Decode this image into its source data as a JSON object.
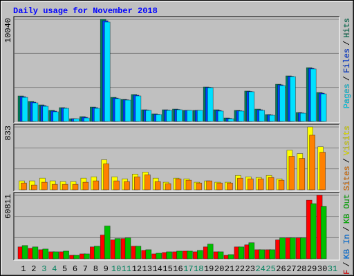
{
  "title": "Daily usage for November 2018",
  "categories": [
    "1",
    "2",
    "3",
    "4",
    "5",
    "6",
    "7",
    "8",
    "9",
    "10",
    "11",
    "12",
    "13",
    "14",
    "15",
    "16",
    "17",
    "18",
    "19",
    "20",
    "21",
    "22",
    "23",
    "24",
    "25",
    "26",
    "27",
    "28",
    "29",
    "30",
    "31"
  ],
  "category_colors": [
    "#000000",
    "#000000",
    "#00805c",
    "#00805c",
    "#000000",
    "#000000",
    "#000000",
    "#000000",
    "#000000",
    "#00805c",
    "#00805c",
    "#000000",
    "#000000",
    "#000000",
    "#000000",
    "#000000",
    "#00805c",
    "#00805c",
    "#000000",
    "#000000",
    "#000000",
    "#000000",
    "#000000",
    "#00805c",
    "#00805c",
    "#000000",
    "#000000",
    "#000000",
    "#000000",
    "#000000",
    "#00805c"
  ],
  "legend_separator": "/",
  "chart_data": [
    {
      "type": "bar",
      "ylim": [
        0,
        10040
      ],
      "yticks": [
        10040
      ],
      "grid": true,
      "grid_divisions": 3,
      "legend_reversed": true,
      "series": [
        {
          "name": "Hits",
          "color": "#00805c",
          "values": [
            2510,
            1970,
            1630,
            1090,
            1360,
            270,
            475,
            1420,
            10040,
            2370,
            2170,
            2650,
            1150,
            750,
            1150,
            1220,
            1090,
            1090,
            3390,
            1150,
            340,
            1090,
            2990,
            1220,
            680,
            3660,
            4480,
            880,
            5290,
            2850,
            0
          ]
        },
        {
          "name": "Files",
          "color": "#0040ff",
          "values": [
            2440,
            1900,
            1560,
            1020,
            1320,
            270,
            410,
            1360,
            9900,
            2300,
            2130,
            2580,
            1120,
            710,
            1120,
            1180,
            1090,
            1090,
            3350,
            1080,
            300,
            1050,
            2950,
            1150,
            640,
            3600,
            4440,
            840,
            5220,
            2780,
            0
          ]
        },
        {
          "name": "Pages",
          "color": "#00e0ff",
          "values": [
            2370,
            1830,
            1490,
            950,
            1290,
            270,
            340,
            1290,
            9770,
            2240,
            2100,
            2510,
            1090,
            680,
            1090,
            1150,
            1090,
            1090,
            3320,
            1020,
            270,
            1020,
            2920,
            1090,
            610,
            3530,
            4410,
            810,
            5160,
            2710,
            0
          ]
        }
      ]
    },
    {
      "type": "bar",
      "ylim": [
        0,
        833
      ],
      "yticks": [
        833
      ],
      "grid": true,
      "grid_divisions": 3,
      "legend_reversed": true,
      "series": [
        {
          "name": "Visits",
          "color": "#ffff00",
          "values": [
            118,
            118,
            154,
            118,
            109,
            109,
            154,
            172,
            398,
            172,
            145,
            208,
            235,
            154,
            100,
            154,
            145,
            100,
            118,
            100,
            100,
            190,
            172,
            163,
            190,
            145,
            525,
            480,
            833,
            570,
            0
          ]
        },
        {
          "name": "Sites",
          "color": "#ff8000",
          "values": [
            90,
            63,
            100,
            72,
            72,
            72,
            100,
            118,
            344,
            118,
            109,
            172,
            199,
            109,
            81,
            145,
            127,
            90,
            118,
            90,
            90,
            154,
            145,
            145,
            163,
            127,
            444,
            416,
            724,
            498,
            0
          ]
        }
      ]
    },
    {
      "type": "bar",
      "ylim": [
        0,
        60811
      ],
      "yticks": [
        60811
      ],
      "grid": true,
      "grid_divisions": 3,
      "legend_reversed": false,
      "series": [
        {
          "name": "KB F",
          "color": "#ff0000",
          "values": [
            11360,
            10020,
            8680,
            6680,
            6680,
            3340,
            4680,
            11360,
            22710,
            18040,
            19370,
            12020,
            8020,
            4680,
            6010,
            6680,
            7350,
            6680,
            11360,
            6680,
            3340,
            11360,
            13360,
            8680,
            8680,
            18040,
            20040,
            20040,
            56130,
            60811,
            0
          ]
        },
        {
          "name": "KB In",
          "color": "#0080ff",
          "values": [
            0,
            0,
            0,
            0,
            0,
            0,
            0,
            0,
            0,
            0,
            0,
            0,
            0,
            0,
            0,
            0,
            0,
            0,
            0,
            0,
            0,
            0,
            0,
            0,
            0,
            0,
            0,
            0,
            0,
            0,
            0
          ]
        },
        {
          "name": "KB Out",
          "color": "#00c000",
          "values": [
            12690,
            11360,
            9350,
            6680,
            7350,
            3340,
            4680,
            12020,
            31400,
            19370,
            20040,
            12020,
            8680,
            5340,
            6680,
            7350,
            7350,
            8020,
            14030,
            6680,
            4010,
            11360,
            15370,
            8680,
            8680,
            20040,
            20040,
            20040,
            52790,
            50120,
            0
          ]
        }
      ]
    }
  ]
}
